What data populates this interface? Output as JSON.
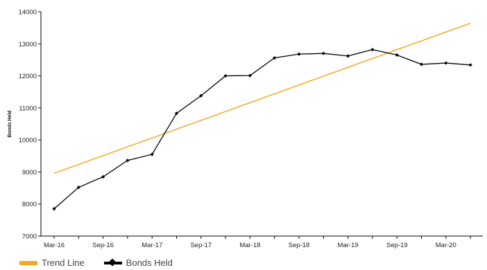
{
  "chart_data": {
    "type": "line",
    "ylabel": "Bonds Held",
    "xlabel": "",
    "ylim": [
      7000,
      14000
    ],
    "yticks": [
      7000,
      8000,
      9000,
      10000,
      11000,
      12000,
      13000,
      14000
    ],
    "x_tick_labels": [
      "Mar-16",
      "Sep-16",
      "Mar-17",
      "Sep-17",
      "Mar-18",
      "Sep-18",
      "Mar-19",
      "Sep-19",
      "Mar-20"
    ],
    "x": [
      "Mar-16",
      "Jun-16",
      "Sep-16",
      "Dec-16",
      "Mar-17",
      "Jun-17",
      "Sep-17",
      "Dec-17",
      "Mar-18",
      "Jun-18",
      "Sep-18",
      "Dec-18",
      "Mar-19",
      "Jun-19",
      "Sep-19",
      "Dec-19",
      "Mar-20",
      "Jun-20"
    ],
    "series": [
      {
        "name": "Bonds Held",
        "color": "#000000",
        "values": [
          7850,
          8520,
          8850,
          9360,
          9550,
          10830,
          11380,
          12000,
          12010,
          12560,
          12680,
          12700,
          12620,
          12820,
          12650,
          12360,
          12400,
          12340
        ]
      },
      {
        "name": "Trend Line",
        "color": "#f5a623",
        "values": [
          8960,
          9235,
          9511,
          9786,
          10062,
          10337,
          10613,
          10888,
          11164,
          11439,
          11715,
          11990,
          12266,
          12541,
          12817,
          13092,
          13368,
          13643
        ]
      }
    ],
    "grid": false,
    "legend_position": "bottom-left"
  },
  "legend": {
    "trend_label": "Trend Line",
    "bonds_label": "Bonds Held"
  }
}
